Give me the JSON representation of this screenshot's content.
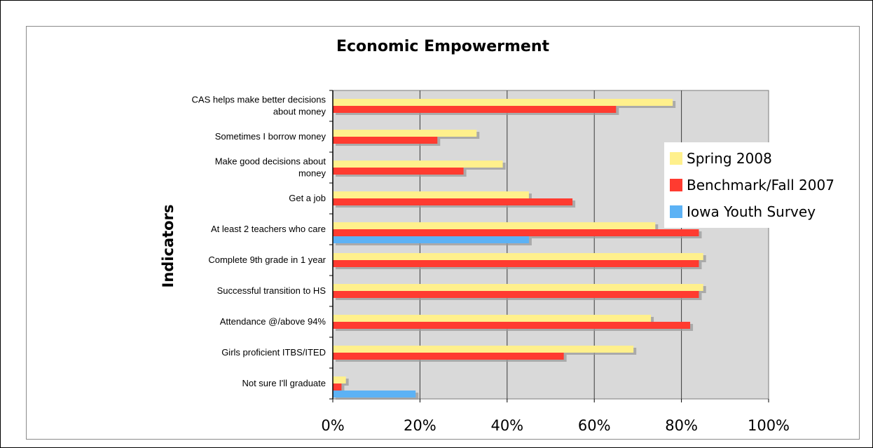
{
  "chart_data": {
    "type": "bar",
    "orientation": "horizontal",
    "title": "Economic Empowerment",
    "xlabel": "",
    "ylabel": "Indicators",
    "xlim": [
      0,
      1
    ],
    "x_ticks": [
      "0%",
      "20%",
      "40%",
      "60%",
      "80%",
      "100%"
    ],
    "categories": [
      [
        "CAS helps make better decisions",
        "about money"
      ],
      [
        "Sometimes I borrow money"
      ],
      [
        "Make good decisions about",
        "money"
      ],
      [
        "Get a job"
      ],
      [
        "At least 2 teachers who care"
      ],
      [
        "Complete 9th grade in 1 year"
      ],
      [
        "Successful transition to HS"
      ],
      [
        "Attendance @/above 94%"
      ],
      [
        "Girls proficient ITBS/ITED"
      ],
      [
        "Not sure I'll graduate"
      ]
    ],
    "series": [
      {
        "name": "Spring 2008",
        "color": "#fff08c",
        "values": [
          0.78,
          0.33,
          0.39,
          0.45,
          0.74,
          0.85,
          0.85,
          0.73,
          0.69,
          0.03
        ]
      },
      {
        "name": "Benchmark/Fall 2007",
        "color": "#ff3b30",
        "values": [
          0.65,
          0.24,
          0.3,
          0.55,
          0.84,
          0.84,
          0.84,
          0.82,
          0.53,
          0.02
        ]
      },
      {
        "name": "Iowa Youth Survey",
        "color": "#5cb2f5",
        "values": [
          null,
          null,
          null,
          null,
          0.45,
          null,
          null,
          null,
          null,
          0.19
        ]
      }
    ],
    "grid": true,
    "legend_position": "right",
    "plot_background": "#d9d9d9"
  }
}
